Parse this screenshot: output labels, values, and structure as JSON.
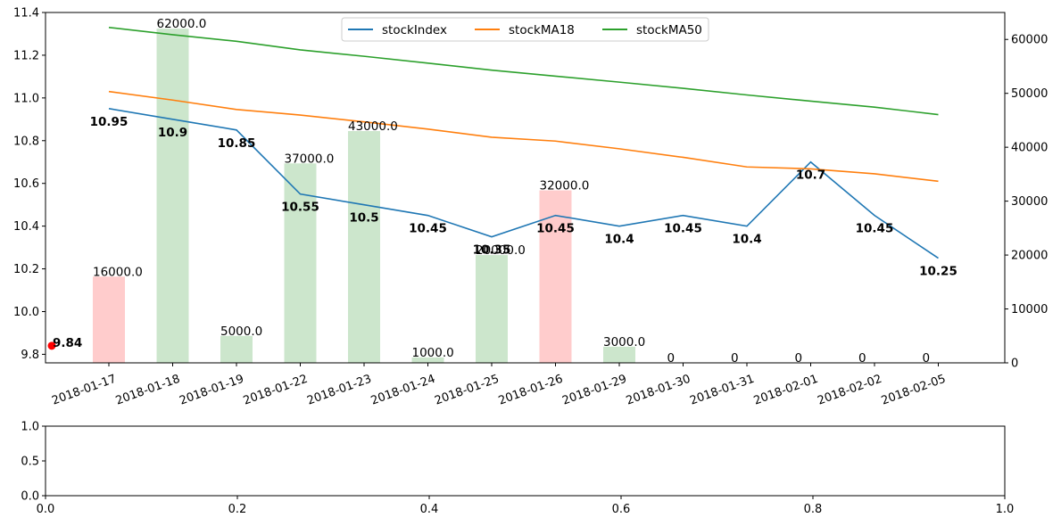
{
  "chart_data": [
    {
      "type": "line",
      "categories": [
        "2018-01-17",
        "2018-01-18",
        "2018-01-19",
        "2018-01-22",
        "2018-01-23",
        "2018-01-24",
        "2018-01-25",
        "2018-01-26",
        "2018-01-29",
        "2018-01-30",
        "2018-01-31",
        "2018-02-01",
        "2018-02-02",
        "2018-02-05"
      ],
      "ylim_left": [
        9.76,
        11.4
      ],
      "yticks_left": [
        "9.8",
        "10.0",
        "10.2",
        "10.4",
        "10.6",
        "10.8",
        "11.0",
        "11.2",
        "11.4"
      ],
      "ylim_right": [
        0,
        65000
      ],
      "yticks_right": [
        "0",
        "10000",
        "20000",
        "30000",
        "40000",
        "50000",
        "60000"
      ],
      "legend": {
        "placement": "top-center",
        "columns": 3
      },
      "series": [
        {
          "name": "stockIndex",
          "color": "#1f77b4",
          "axis": "left",
          "values": [
            10.95,
            10.9,
            10.85,
            10.55,
            10.5,
            10.45,
            10.35,
            10.45,
            10.4,
            10.45,
            10.4,
            10.7,
            10.45,
            10.25
          ],
          "labels": [
            "10.95",
            "10.9",
            "10.85",
            "10.55",
            "10.5",
            "10.45",
            "10.35",
            "10.45",
            "10.4",
            "10.45",
            "10.4",
            "10.7",
            "10.45",
            "10.25"
          ]
        },
        {
          "name": "stockMA18",
          "color": "#ff7f0e",
          "axis": "left",
          "values": [
            11.03,
            10.99,
            10.946,
            10.92,
            10.888,
            10.854,
            10.816,
            10.798,
            10.762,
            10.722,
            10.677,
            10.668,
            10.645,
            10.61
          ]
        },
        {
          "name": "stockMA50",
          "color": "#2ca02c",
          "axis": "left",
          "values": [
            11.33,
            11.296,
            11.265,
            11.225,
            11.195,
            11.163,
            11.13,
            11.102,
            11.074,
            11.045,
            11.014,
            10.985,
            10.957,
            10.922
          ]
        }
      ],
      "volume": {
        "type": "bar",
        "axis": "right",
        "values": [
          16000,
          62000,
          5000,
          37000,
          43000,
          1000,
          20000,
          32000,
          3000,
          0,
          0,
          0,
          0,
          0
        ],
        "labels": [
          "16000.0",
          "62000.0",
          "5000.0",
          "37000.0",
          "43000.0",
          "1000.0",
          "20000.0",
          "32000.0",
          "3000.0",
          "0",
          "0",
          "0",
          "0",
          "0"
        ],
        "colors": [
          "#ffcccc",
          "#cce6cc",
          "#cce6cc",
          "#cce6cc",
          "#cce6cc",
          "#cce6cc",
          "#cce6cc",
          "#ffcccc",
          "#cce6cc",
          "#cce6cc",
          "#cce6cc",
          "#cce6cc",
          "#cce6cc",
          "#cce6cc"
        ]
      },
      "marker": {
        "label": "9.84",
        "value": 9.84,
        "color": "#ff0000"
      }
    },
    {
      "type": "line",
      "xlim": [
        0,
        1
      ],
      "ylim": [
        0,
        1
      ],
      "xticks": [
        "0.0",
        "0.2",
        "0.4",
        "0.6",
        "0.8",
        "1.0"
      ],
      "yticks": [
        "0.0",
        "0.5",
        "1.0"
      ],
      "series": []
    }
  ]
}
